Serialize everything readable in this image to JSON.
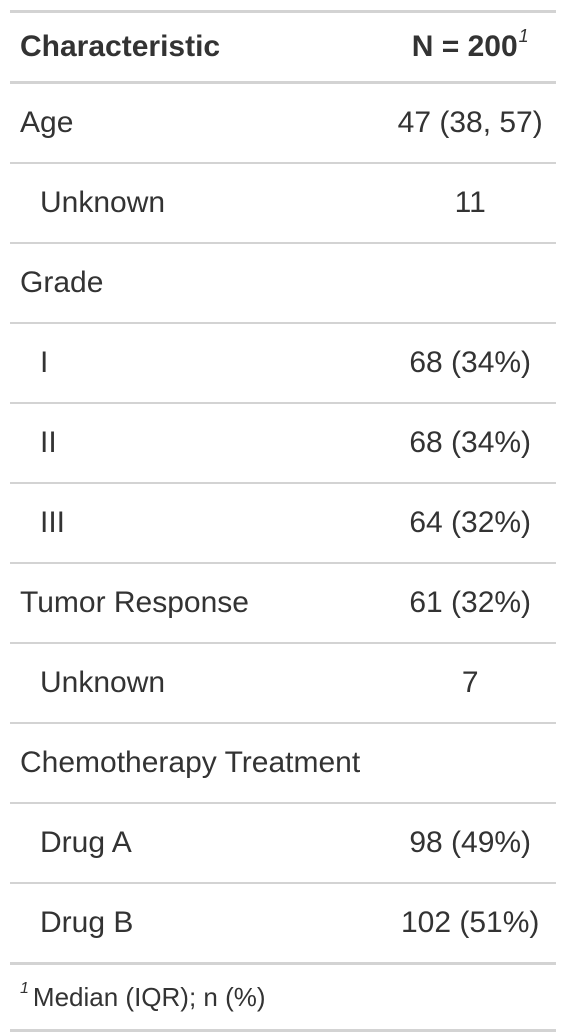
{
  "header": {
    "characteristic": "Characteristic",
    "n_label": "N = 200",
    "n_footnote_mark": "1"
  },
  "rows": [
    {
      "label": "Age",
      "value": "47 (38, 57)"
    },
    {
      "label": "Unknown",
      "value": "11"
    },
    {
      "label": "Grade",
      "value": ""
    },
    {
      "label": "I",
      "value": "68 (34%)"
    },
    {
      "label": "II",
      "value": "68 (34%)"
    },
    {
      "label": "III",
      "value": "64 (32%)"
    },
    {
      "label": "Tumor Response",
      "value": "61 (32%)"
    },
    {
      "label": "Unknown",
      "value": "7"
    },
    {
      "label": "Chemotherapy Treatment",
      "value": ""
    },
    {
      "label": "Drug A",
      "value": "98 (49%)"
    },
    {
      "label": "Drug B",
      "value": "102 (51%)"
    }
  ],
  "footnote": {
    "mark": "1",
    "text": "Median (IQR); n (%)"
  }
}
